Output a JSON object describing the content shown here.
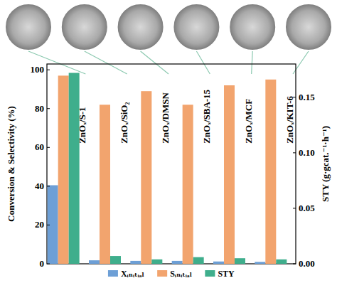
{
  "chart_data": {
    "type": "bar",
    "categories": [
      "ZnOₓ/S-1",
      "ZnOₓ/SiO₂",
      "ZnOₓ/DMSN",
      "ZnOₓ/SBA-15",
      "ZnOₓ/MCF",
      "ZnOₓ/KIT-6"
    ],
    "series": [
      {
        "name": "Xᵢₙᵢₜᵢₐₗ",
        "color": "#6d9fd6",
        "values": [
          40.5,
          1.8,
          1.5,
          1.5,
          1.2,
          1.0
        ]
      },
      {
        "name": "Sᵢₙᵢₜᵢₐₗ",
        "color": "#f2a46e",
        "values": [
          97,
          82,
          89,
          82,
          92,
          95
        ]
      },
      {
        "name": "STY",
        "color": "#3fae8c",
        "axis": "y2",
        "values": [
          0.172,
          0.007,
          0.004,
          0.006,
          0.005,
          0.004
        ]
      }
    ],
    "y_label": "Conversion & Selectivity (%)",
    "y2_label": "STY (g·gcat.⁻¹·h⁻¹)",
    "ylim": [
      0,
      103
    ],
    "yticks": [
      0,
      20,
      40,
      60,
      80,
      100
    ],
    "y2lim": [
      0,
      0.18
    ],
    "y2ticks": [
      {
        "value": 0,
        "label": "0.00"
      },
      {
        "value": 0.05,
        "label": "0.05"
      },
      {
        "value": 0.1,
        "label": "0.10"
      },
      {
        "value": 0.15,
        "label": "0.15"
      }
    ],
    "grid": false,
    "legend": "bottom"
  }
}
